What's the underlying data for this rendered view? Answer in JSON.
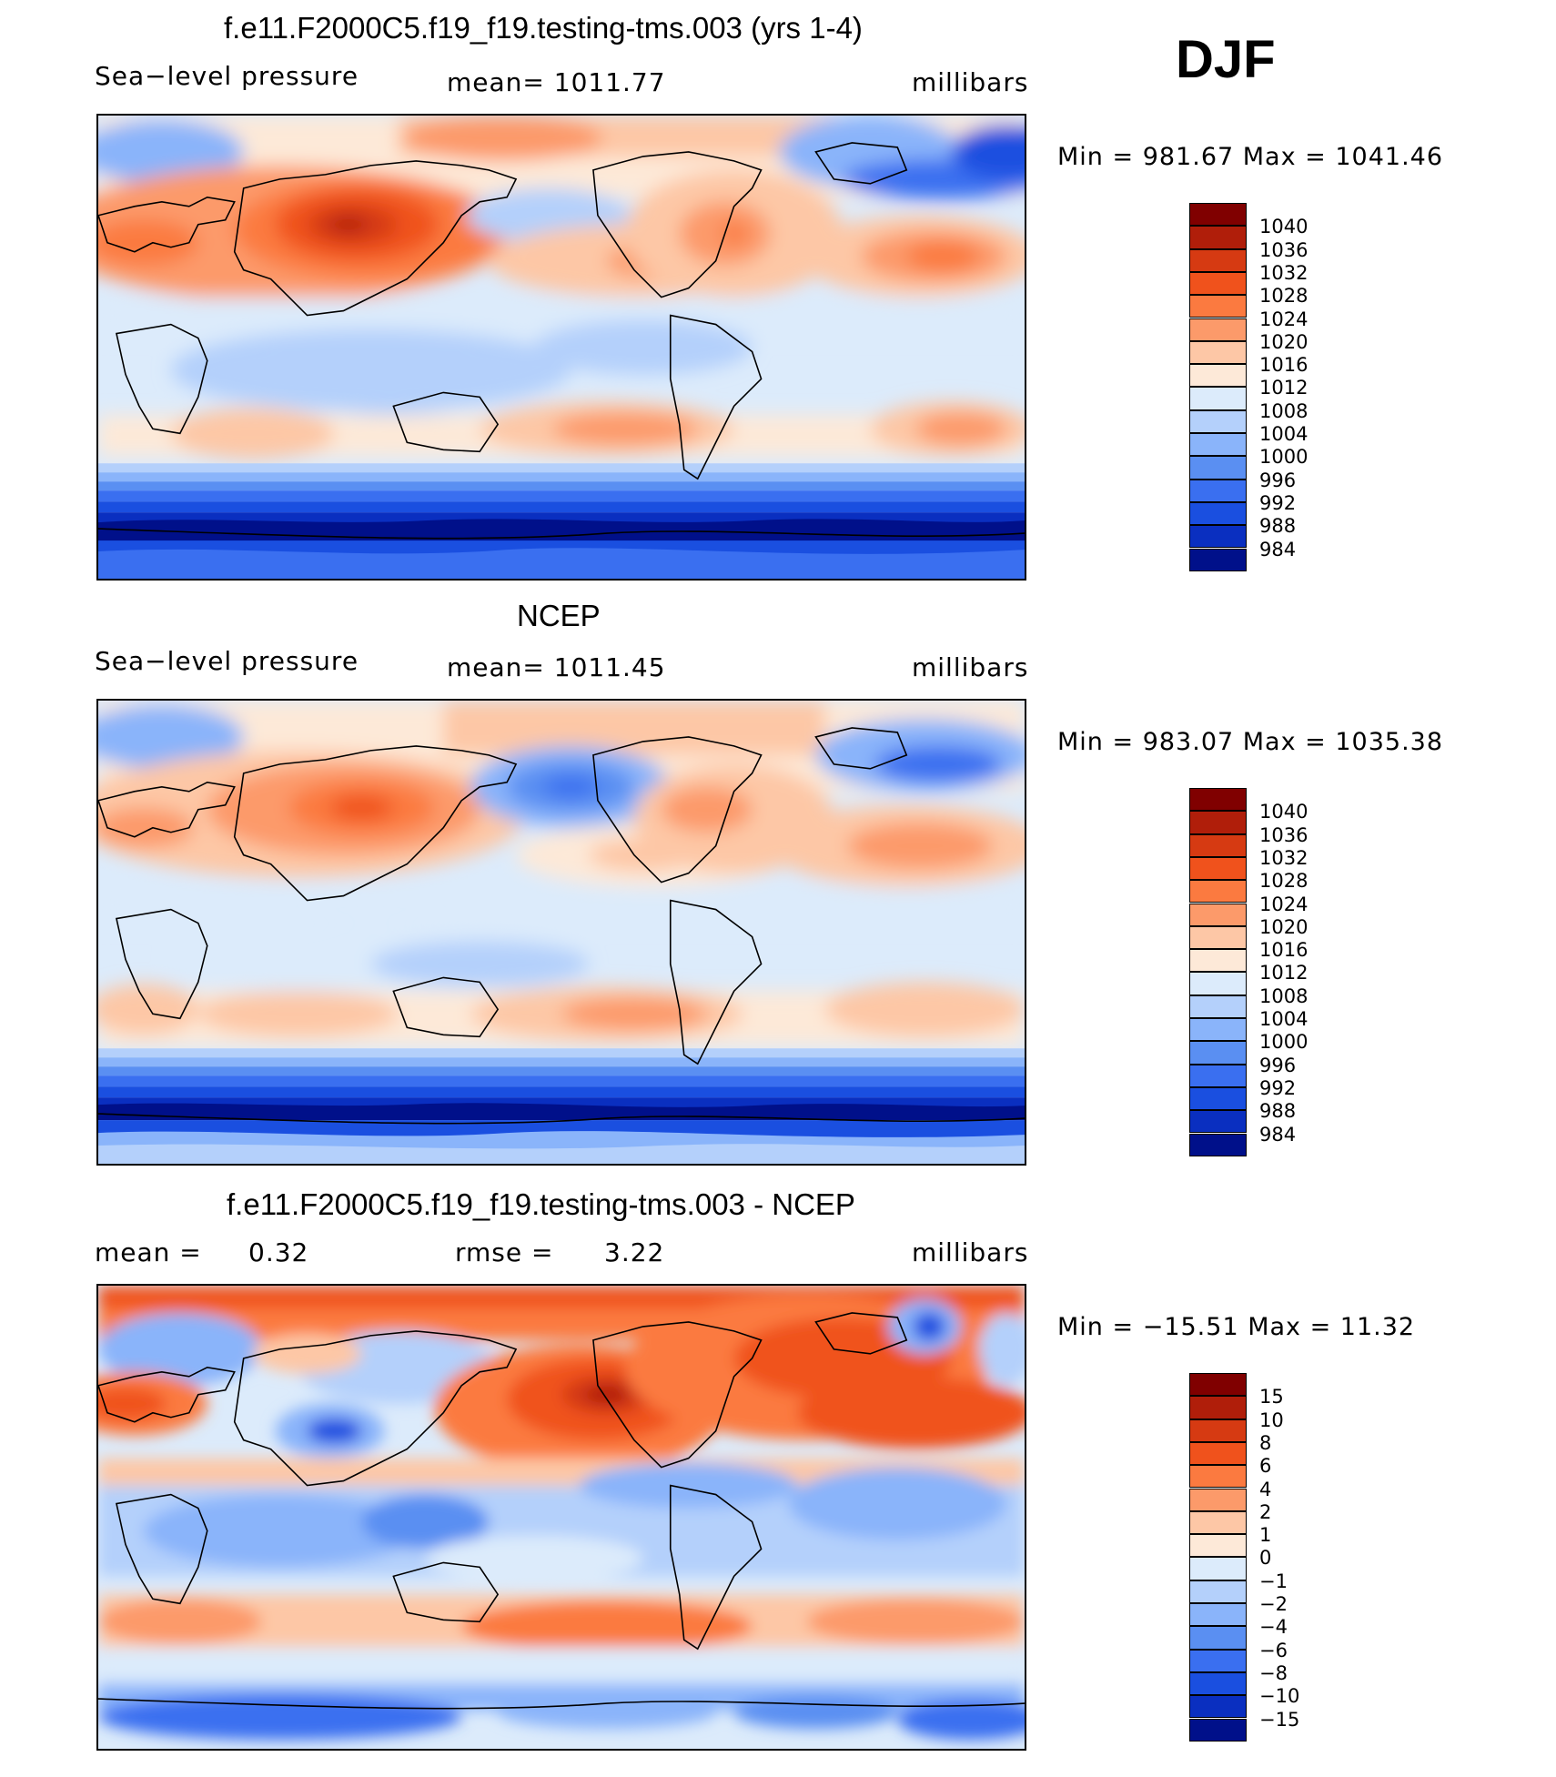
{
  "season": "DJF",
  "panels": [
    {
      "id": "model",
      "title": "f.e11.F2000C5.f19_f19.testing-tms.003 (yrs 1-4)",
      "left_label": "Sea−level pressure",
      "center_label": "mean=  1011.77",
      "right_label": "millibars",
      "minmax": "Min  =  981.67  Max  =  1041.46"
    },
    {
      "id": "obs",
      "title": "NCEP",
      "left_label": "Sea−level pressure",
      "center_label": "mean=  1011.45",
      "right_label": "millibars",
      "minmax": "Min  =  983.07  Max  =  1035.38"
    },
    {
      "id": "diff",
      "title": "f.e11.F2000C5.f19_f19.testing-tms.003 - NCEP",
      "left_label": "mean  =",
      "left_value": "0.32",
      "center_label": "rmse  =",
      "center_value": "3.22",
      "right_label": "millibars",
      "minmax": "Min  =  −15.51  Max  =    11.32"
    }
  ],
  "legend_abs": {
    "colors": [
      "#800000",
      "#b01e0a",
      "#d63a12",
      "#f0521c",
      "#fb7a40",
      "#fc9a6a",
      "#fdc7a6",
      "#fde9d8",
      "#dcebfb",
      "#b4d0fb",
      "#8ab4fa",
      "#5a8ff2",
      "#3a6ff0",
      "#1a4fe0",
      "#0a2fc0",
      "#00108a"
    ],
    "labels": [
      "1040",
      "1036",
      "1032",
      "1028",
      "1024",
      "1020",
      "1016",
      "1012",
      "1008",
      "1004",
      "1000",
      "996",
      "992",
      "988",
      "984"
    ]
  },
  "legend_diff": {
    "colors": [
      "#800000",
      "#b01e0a",
      "#d63a12",
      "#f0521c",
      "#fb7a40",
      "#fc9a6a",
      "#fdc7a6",
      "#fde9d8",
      "#dcebfb",
      "#b4d0fb",
      "#8ab4fa",
      "#5a8ff2",
      "#3a6ff0",
      "#1a4fe0",
      "#0a2fc0",
      "#00108a"
    ],
    "labels": [
      "15",
      "10",
      "8",
      "6",
      "4",
      "2",
      "1",
      "0",
      "−1",
      "−2",
      "−4",
      "−6",
      "−8",
      "−10",
      "−15"
    ]
  }
}
